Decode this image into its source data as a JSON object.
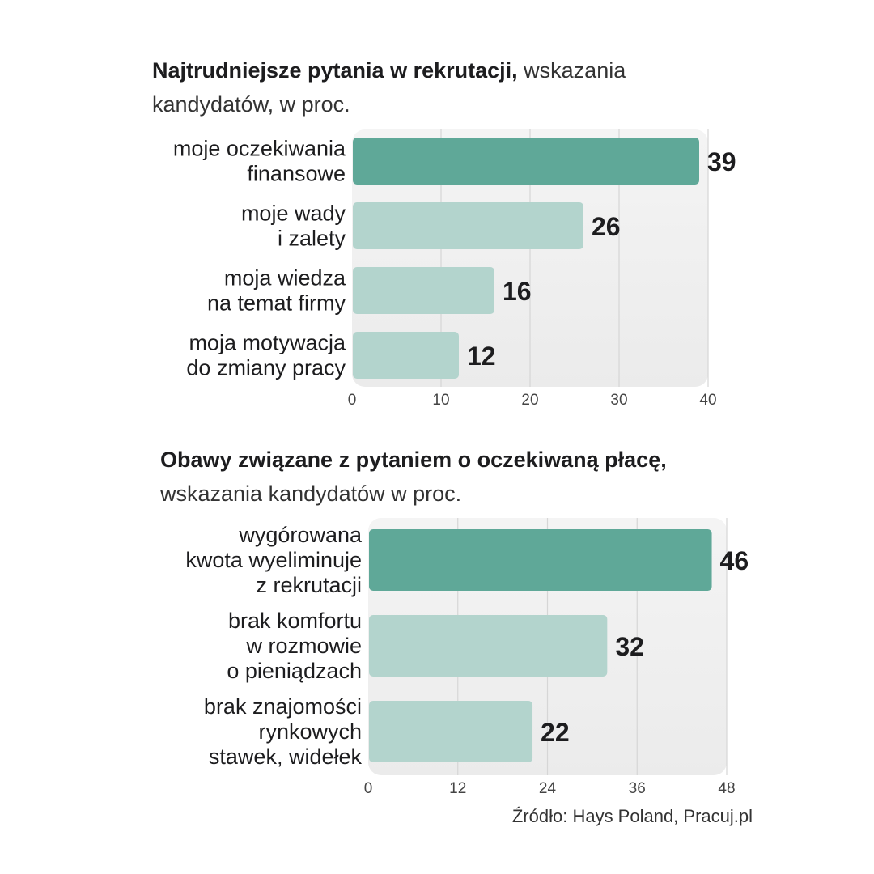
{
  "charts": [
    {
      "id": "chart-1",
      "title_bold": "Najtrudniejsze pytania w rekrutacji,",
      "title_rest": " wskazania kandydatów, w proc."
    },
    {
      "id": "chart-2",
      "title_bold": "Obawy związane z pytaniem o oczekiwaną płacę,",
      "title_rest": " wskazania kandydatów w proc."
    }
  ],
  "chart_data": [
    {
      "type": "bar",
      "orientation": "horizontal",
      "title": "Najtrudniejsze pytania w rekrutacji, wskazania kandydatów, w proc.",
      "categories": [
        [
          "moje oczekiwania",
          "finansowe"
        ],
        [
          "moje wady",
          "i zalety"
        ],
        [
          "moja wiedza",
          "na temat firmy"
        ],
        [
          "moja motywacja",
          "do zmiany pracy"
        ]
      ],
      "values": [
        39,
        26,
        16,
        12
      ],
      "xlim": [
        0,
        40
      ],
      "ticks": [
        0,
        10,
        20,
        30,
        40
      ],
      "grid": true,
      "colors": {
        "highlight": "#5fa898",
        "bar": "#b3d4cd",
        "plot_bg": "#ebebeb"
      }
    },
    {
      "type": "bar",
      "orientation": "horizontal",
      "title": "Obawy związane z pytaniem o oczekiwaną płacę, wskazania kandydatów w proc.",
      "categories": [
        [
          "wygórowana",
          "kwota wyeliminuje",
          "z rekrutacji"
        ],
        [
          "brak komfortu",
          "w rozmowie",
          "o pieniądzach"
        ],
        [
          "brak znajomości",
          "rynkowych",
          "stawek, widełek"
        ]
      ],
      "values": [
        46,
        32,
        22
      ],
      "xlim": [
        0,
        48
      ],
      "ticks": [
        0,
        12,
        24,
        36,
        48
      ],
      "grid": true,
      "colors": {
        "highlight": "#5fa898",
        "bar": "#b3d4cd",
        "plot_bg": "#ebebeb"
      }
    }
  ],
  "source": "Źródło: Hays Poland, Pracuj.pl"
}
